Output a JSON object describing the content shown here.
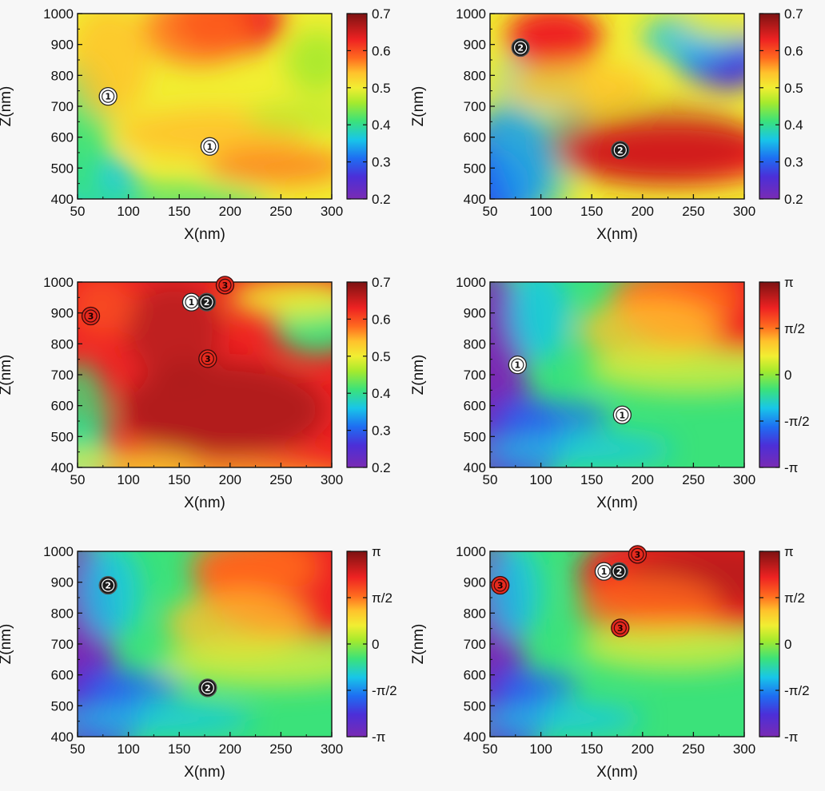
{
  "chart_data": [
    {
      "type": "heatmap",
      "id": "p1",
      "xlabel": "X(nm)",
      "ylabel": "Z(nm)",
      "xlim": [
        50,
        300
      ],
      "ylim": [
        400,
        1000
      ],
      "x_ticks": [
        "50",
        "100",
        "150",
        "200",
        "250",
        "300"
      ],
      "y_ticks": [
        "400",
        "500",
        "600",
        "700",
        "800",
        "900",
        "1000"
      ],
      "colorbar": {
        "range": [
          0.2,
          0.7
        ],
        "ticks": [
          "0.2",
          "0.3",
          "0.4",
          "0.5",
          "0.6",
          "0.7"
        ]
      },
      "markers": [
        {
          "label": "1",
          "x": 80,
          "z": 732,
          "style": "white"
        },
        {
          "label": "1",
          "x": 180,
          "z": 570,
          "style": "white"
        }
      ]
    },
    {
      "type": "heatmap",
      "id": "p2",
      "xlabel": "X(nm)",
      "ylabel": "Z(nm)",
      "xlim": [
        50,
        300
      ],
      "ylim": [
        400,
        1000
      ],
      "x_ticks": [
        "50",
        "100",
        "150",
        "200",
        "250",
        "300"
      ],
      "y_ticks": [
        "400",
        "500",
        "600",
        "700",
        "800",
        "900",
        "1000"
      ],
      "colorbar": {
        "range": [
          0.2,
          0.7
        ],
        "ticks": [
          "0.2",
          "0.3",
          "0.4",
          "0.5",
          "0.6",
          "0.7"
        ]
      },
      "markers": [
        {
          "label": "2",
          "x": 80,
          "z": 890,
          "style": "black"
        },
        {
          "label": "2",
          "x": 178,
          "z": 558,
          "style": "black"
        }
      ]
    },
    {
      "type": "heatmap",
      "id": "p3",
      "xlabel": "X(nm)",
      "ylabel": "Z(nm)",
      "xlim": [
        50,
        300
      ],
      "ylim": [
        400,
        1000
      ],
      "x_ticks": [
        "50",
        "100",
        "150",
        "200",
        "250",
        "300"
      ],
      "y_ticks": [
        "400",
        "500",
        "600",
        "700",
        "800",
        "900",
        "1000"
      ],
      "colorbar": {
        "range": [
          0.2,
          0.7
        ],
        "ticks": [
          "0.2",
          "0.3",
          "0.4",
          "0.5",
          "0.6",
          "0.7"
        ]
      },
      "markers": [
        {
          "label": "3",
          "x": 63,
          "z": 890,
          "style": "red"
        },
        {
          "label": "1",
          "x": 162,
          "z": 935,
          "style": "white"
        },
        {
          "label": "2",
          "x": 177,
          "z": 935,
          "style": "black"
        },
        {
          "label": "3",
          "x": 195,
          "z": 990,
          "style": "red"
        },
        {
          "label": "3",
          "x": 178,
          "z": 752,
          "style": "red"
        }
      ]
    },
    {
      "type": "heatmap",
      "id": "p4",
      "xlabel": "X(nm)",
      "ylabel": "Z(nm)",
      "xlim": [
        50,
        300
      ],
      "ylim": [
        400,
        1000
      ],
      "x_ticks": [
        "50",
        "100",
        "150",
        "200",
        "250",
        "300"
      ],
      "y_ticks": [
        "400",
        "500",
        "600",
        "700",
        "800",
        "900",
        "1000"
      ],
      "colorbar": {
        "range": [
          -3.1416,
          3.1416
        ],
        "ticks": [
          "-π",
          "-π/2",
          "0",
          "π/2",
          "π"
        ]
      },
      "markers": [
        {
          "label": "1",
          "x": 77,
          "z": 732,
          "style": "white"
        },
        {
          "label": "1",
          "x": 180,
          "z": 570,
          "style": "white"
        }
      ]
    },
    {
      "type": "heatmap",
      "id": "p5",
      "xlabel": "X(nm)",
      "ylabel": "Z(nm)",
      "xlim": [
        50,
        300
      ],
      "ylim": [
        400,
        1000
      ],
      "x_ticks": [
        "50",
        "100",
        "150",
        "200",
        "250",
        "300"
      ],
      "y_ticks": [
        "400",
        "500",
        "600",
        "700",
        "800",
        "900",
        "1000"
      ],
      "colorbar": {
        "range": [
          -3.1416,
          3.1416
        ],
        "ticks": [
          "-π",
          "-π/2",
          "0",
          "π/2",
          "π"
        ]
      },
      "markers": [
        {
          "label": "2",
          "x": 80,
          "z": 890,
          "style": "black"
        },
        {
          "label": "2",
          "x": 178,
          "z": 558,
          "style": "black"
        }
      ]
    },
    {
      "type": "heatmap",
      "id": "p6",
      "xlabel": "X(nm)",
      "ylabel": "Z(nm)",
      "xlim": [
        50,
        300
      ],
      "ylim": [
        400,
        1000
      ],
      "x_ticks": [
        "50",
        "100",
        "150",
        "200",
        "250",
        "300"
      ],
      "y_ticks": [
        "400",
        "500",
        "600",
        "700",
        "800",
        "900",
        "1000"
      ],
      "colorbar": {
        "range": [
          -3.1416,
          3.1416
        ],
        "ticks": [
          "-π",
          "-π/2",
          "0",
          "π/2",
          "π"
        ]
      },
      "markers": [
        {
          "label": "3",
          "x": 60,
          "z": 890,
          "style": "red"
        },
        {
          "label": "1",
          "x": 162,
          "z": 935,
          "style": "white"
        },
        {
          "label": "2",
          "x": 177,
          "z": 935,
          "style": "black"
        },
        {
          "label": "3",
          "x": 195,
          "z": 990,
          "style": "red"
        },
        {
          "label": "3",
          "x": 178,
          "z": 752,
          "style": "red"
        }
      ]
    }
  ]
}
